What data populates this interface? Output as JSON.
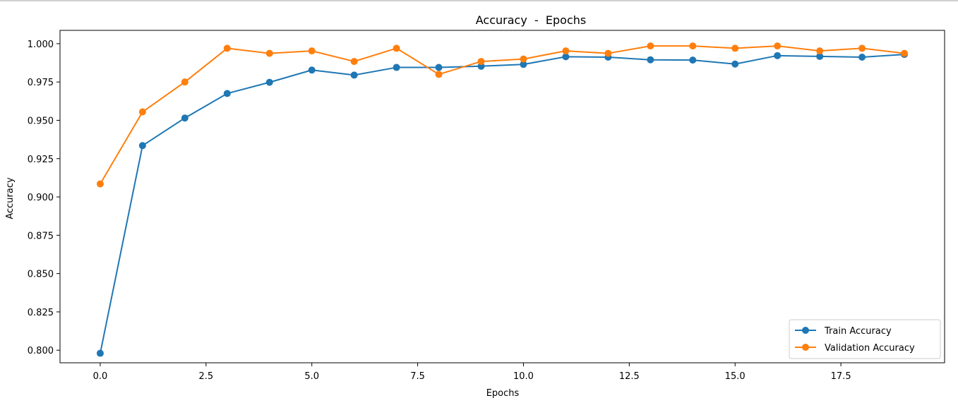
{
  "chart_data": {
    "type": "line",
    "title": "Accuracy  -  Epochs",
    "xlabel": "Epochs",
    "ylabel": "Accuracy",
    "xlim": [
      -0.95,
      19.95
    ],
    "ylim": [
      0.7918,
      1.0087
    ],
    "x_ticks": [
      0.0,
      2.5,
      5.0,
      7.5,
      10.0,
      12.5,
      15.0,
      17.5
    ],
    "x_tick_labels": [
      "0.0",
      "2.5",
      "5.0",
      "7.5",
      "10.0",
      "12.5",
      "15.0",
      "17.5"
    ],
    "y_ticks": [
      0.8,
      0.825,
      0.85,
      0.875,
      0.9,
      0.925,
      0.95,
      0.975,
      1.0
    ],
    "y_tick_labels": [
      "0.800",
      "0.825",
      "0.850",
      "0.875",
      "0.900",
      "0.925",
      "0.950",
      "0.975",
      "1.000"
    ],
    "grid": false,
    "legend_position": "lower-right",
    "x": [
      0,
      1,
      2,
      3,
      4,
      5,
      6,
      7,
      8,
      9,
      10,
      11,
      12,
      13,
      14,
      15,
      16,
      17,
      18,
      19
    ],
    "series": [
      {
        "name": "Train Accuracy",
        "color": "#1f77b4",
        "marker": "circle",
        "values": [
          0.798,
          0.9335,
          0.9515,
          0.9675,
          0.9748,
          0.9828,
          0.9795,
          0.9845,
          0.9845,
          0.9853,
          0.9865,
          0.9915,
          0.9912,
          0.9895,
          0.9893,
          0.9867,
          0.9922,
          0.9917,
          0.9912,
          0.993
        ]
      },
      {
        "name": "Validation Accuracy",
        "color": "#ff7f0e",
        "marker": "circle",
        "values": [
          0.9085,
          0.9555,
          0.975,
          0.997,
          0.9937,
          0.9953,
          0.9884,
          0.997,
          0.98,
          0.9884,
          0.99,
          0.9953,
          0.9937,
          0.9985,
          0.9985,
          0.997,
          0.9985,
          0.9953,
          0.997,
          0.9937
        ]
      }
    ]
  }
}
